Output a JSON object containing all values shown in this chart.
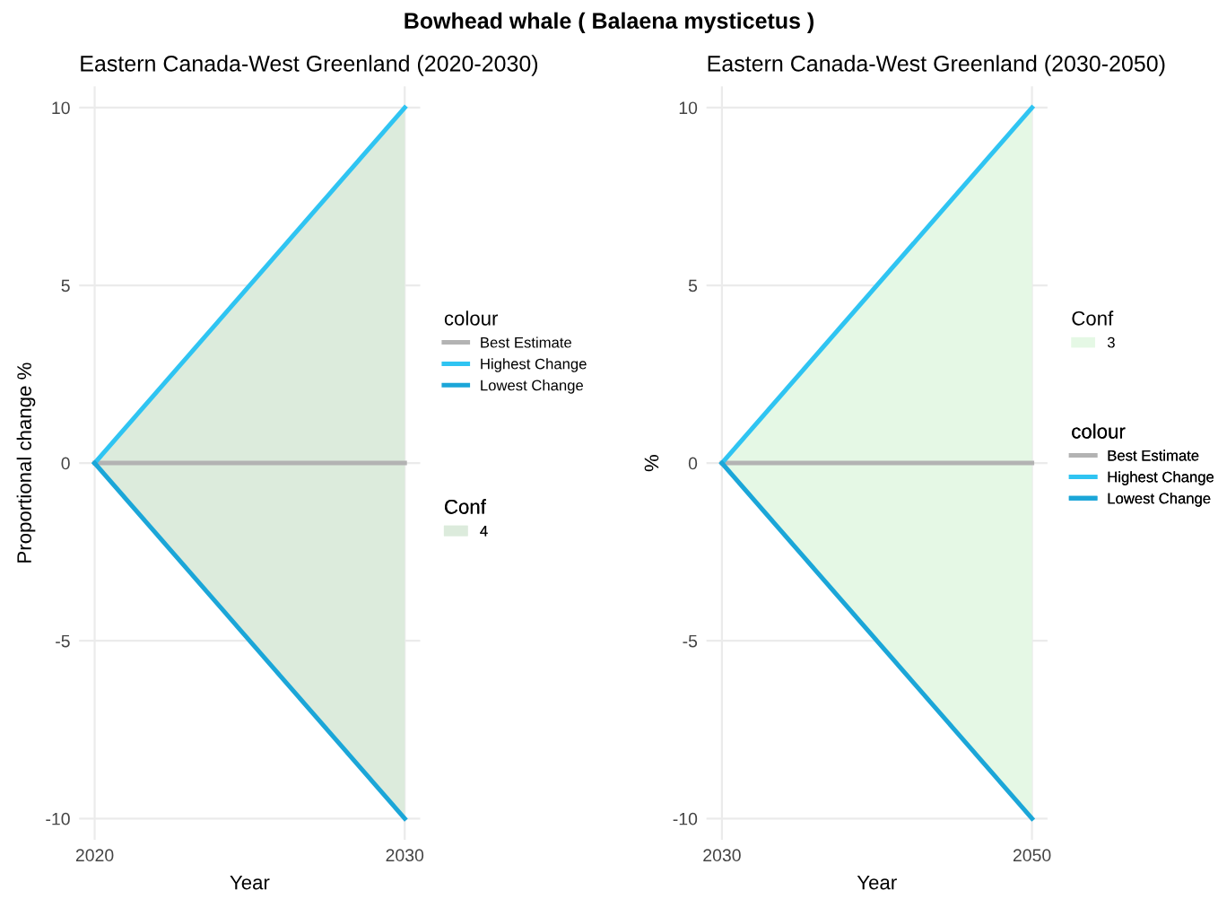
{
  "chart_data": [
    {
      "type": "line",
      "title": "Eastern Canada-West Greenland (2020-2030)",
      "annotations": [
        "Bowhead whale ( Balaena mysticetus )"
      ],
      "xlabel": "Year",
      "ylabel": "Proportional change %",
      "legend_title": [
        "colour",
        "Conf"
      ],
      "x": [
        2020,
        2030
      ],
      "xlim": [
        2019.5,
        2030.5
      ],
      "xticks": [
        2020,
        2030
      ],
      "ylim": [
        -10.6,
        10.6
      ],
      "yticks": [
        -10,
        -5,
        0,
        5,
        10
      ],
      "grid": true,
      "legend": "right",
      "series": [
        {
          "name": "Best Estimate",
          "color": "#b3b3b3",
          "values": [
            0,
            0
          ]
        },
        {
          "name": "Highest Change",
          "color": "#2fc4f2",
          "values": [
            0,
            10
          ]
        },
        {
          "name": "Lowest Change",
          "color": "#1ba6d8",
          "values": [
            0,
            -10
          ]
        },
        {
          "name": "4",
          "type": "area",
          "color": "#dcebdc",
          "values": [
            null,
            null
          ],
          "lower": [
            0,
            -10
          ],
          "upper": [
            0,
            10
          ]
        }
      ]
    },
    {
      "type": "line",
      "title": "Eastern Canada-West Greenland (2030-2050)",
      "xlabel": "Year",
      "ylabel": "%",
      "legend_title": [
        "Conf",
        "colour"
      ],
      "x": [
        2030,
        2050
      ],
      "xlim": [
        2029,
        2051
      ],
      "xticks": [
        2030,
        2050
      ],
      "ylim": [
        -10.6,
        10.6
      ],
      "yticks": [
        -10,
        -5,
        0,
        5,
        10
      ],
      "grid": true,
      "legend": "right",
      "series": [
        {
          "name": "3",
          "type": "area",
          "color": "#e5f8e5",
          "values": [
            null,
            null
          ],
          "lower": [
            0,
            -10
          ],
          "upper": [
            0,
            10
          ]
        },
        {
          "name": "Best Estimate",
          "color": "#b3b3b3",
          "values": [
            0,
            0
          ]
        },
        {
          "name": "Highest Change",
          "color": "#2fc4f2",
          "values": [
            0,
            10
          ]
        },
        {
          "name": "Lowest Change",
          "color": "#1ba6d8",
          "values": [
            0,
            -10
          ]
        }
      ]
    }
  ]
}
